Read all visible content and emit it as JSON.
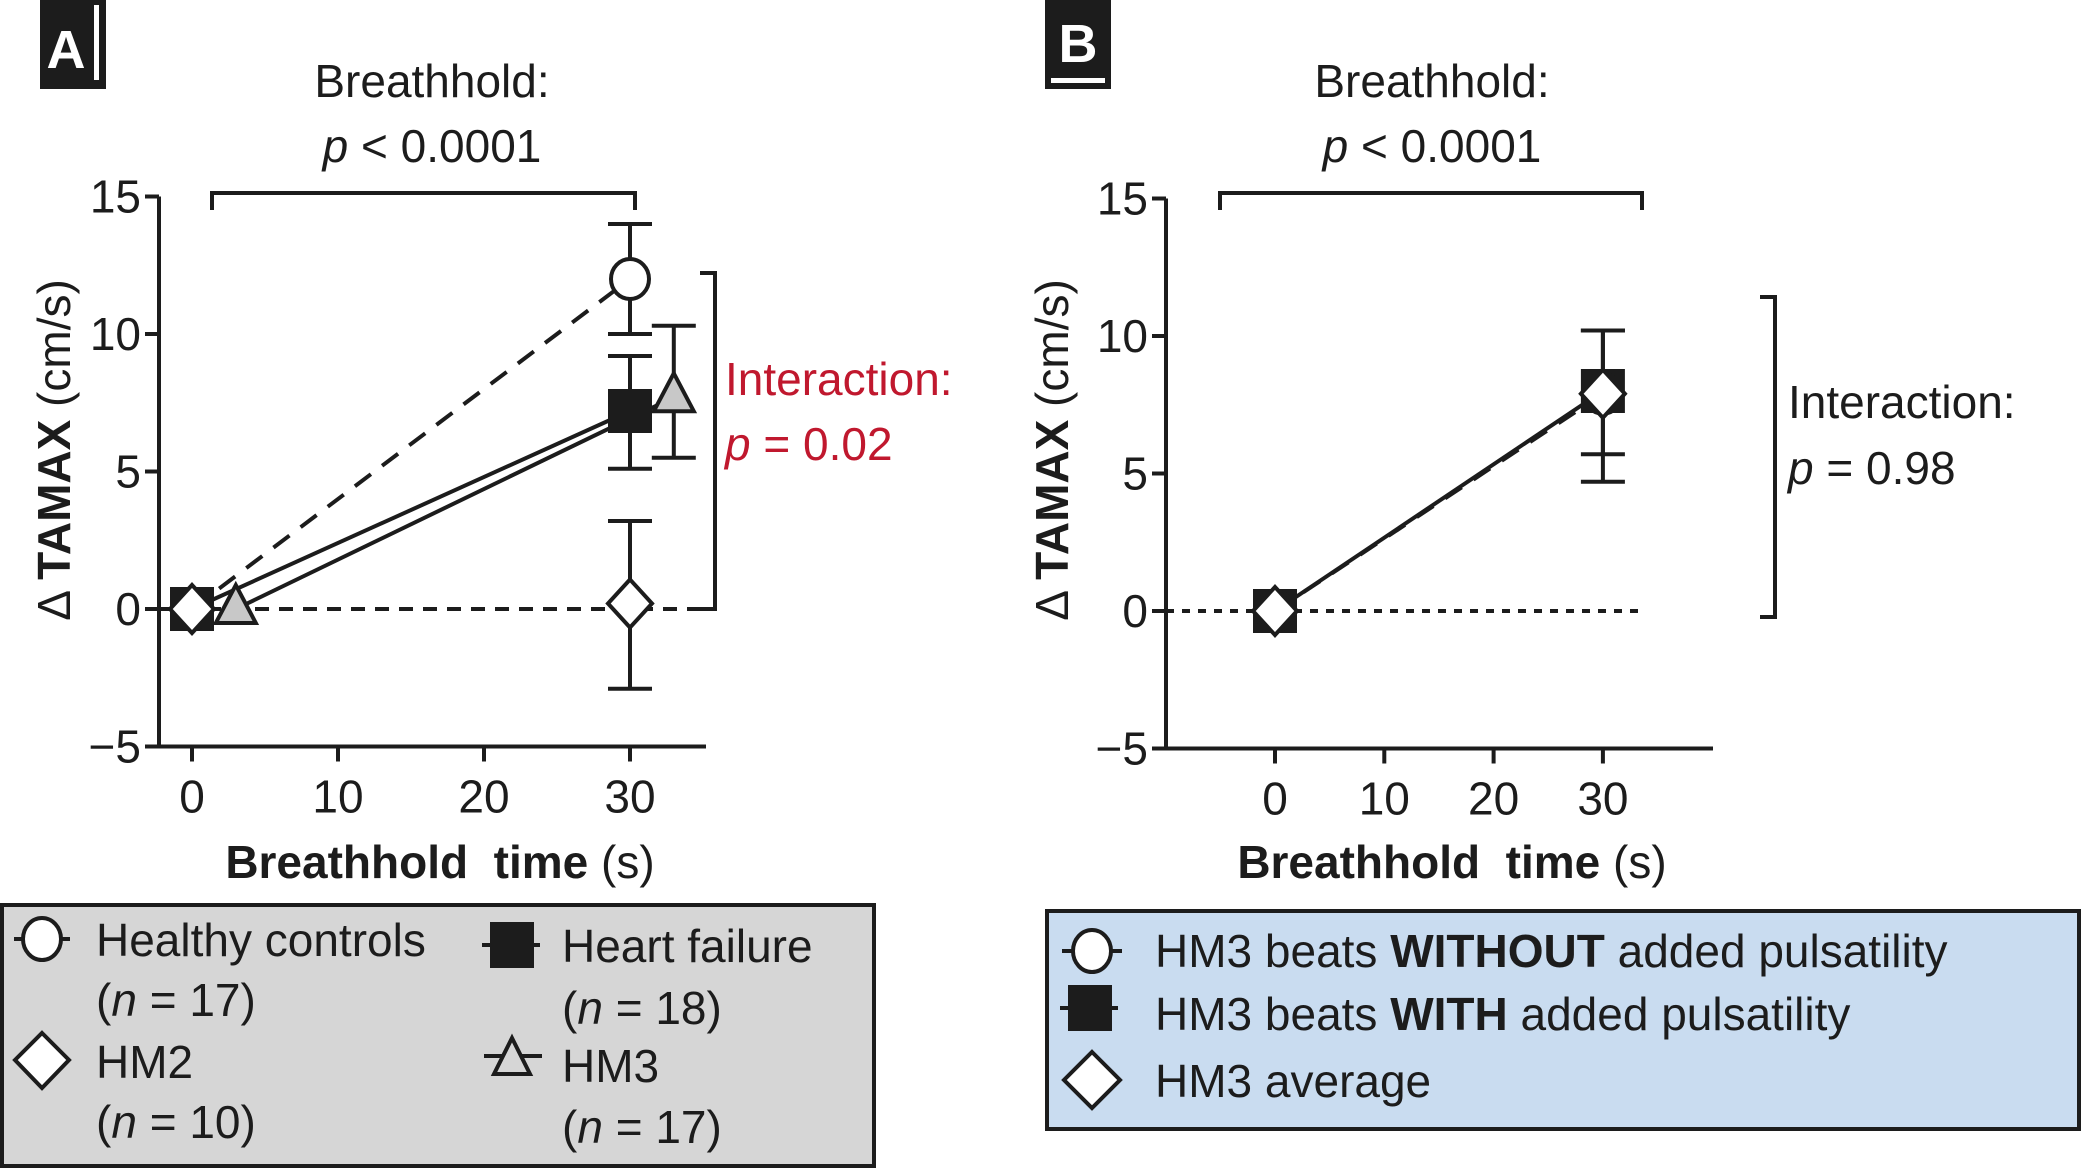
{
  "colors": {
    "ink": "#1c1c1c",
    "interaction_red": "#c0182e",
    "legend_a_bg": "#d6d6d6",
    "legend_b_bg": "#c9dcf0",
    "hm3_triangle_fill": "#c8c8c8"
  },
  "chart_data": [
    {
      "panel": "A",
      "type": "line",
      "panel_label": "A",
      "title_line1": "Breathhold:",
      "title_line2_p": "p",
      "title_line2_rest": " < 0.0001",
      "interaction_line1": "Interaction:",
      "interaction_p": "p",
      "interaction_rest": " = 0.02",
      "xlabel_bold": "Breathhold  time",
      "xlabel_rest": " (s)",
      "ylabel_delta": "Δ ",
      "ylabel_bold": "TAMAX",
      "ylabel_rest": " (cm/s)",
      "xlim": [
        -3.2,
        35.5
      ],
      "ylim": [
        -5,
        15
      ],
      "xticks": [
        0,
        10,
        20,
        30
      ],
      "xtick_labels": [
        "0",
        "10",
        "20",
        "30"
      ],
      "yticks": [
        -5,
        0,
        5,
        10,
        15
      ],
      "ytick_labels": [
        "−5",
        "0",
        "5",
        "10",
        "15"
      ],
      "reference_line_y": 0,
      "series": [
        {
          "name": "Healthy controls",
          "n_label": "(n = 17)",
          "n_prefix": "(",
          "n_var": "n",
          "n_value": " = 17)",
          "marker": "circle",
          "line": "dashed",
          "x": [
            0,
            30
          ],
          "y": [
            0,
            12.0
          ],
          "err_low": [
            null,
            10.0
          ],
          "err_high": [
            null,
            14.0
          ]
        },
        {
          "name": "Heart failure",
          "n_prefix": "(",
          "n_var": "n",
          "n_value": " = 18)",
          "marker": "square",
          "line": "solid",
          "x": [
            0,
            30
          ],
          "y": [
            0,
            7.2
          ],
          "err_low": [
            null,
            5.1
          ],
          "err_high": [
            null,
            9.2
          ]
        },
        {
          "name": "HM2",
          "n_prefix": "(",
          "n_var": "n",
          "n_value": " = 10)",
          "marker": "diamond",
          "line": "none",
          "x": [
            0,
            30
          ],
          "y": [
            0,
            0.2
          ],
          "err_low": [
            null,
            -2.9
          ],
          "err_high": [
            null,
            3.2
          ]
        },
        {
          "name": "HM3",
          "n_prefix": "(",
          "n_var": "n",
          "n_value": " = 17)",
          "marker": "triangle",
          "line": "solid",
          "x": [
            3,
            33
          ],
          "y": [
            0,
            7.7
          ],
          "err_low": [
            null,
            5.5
          ],
          "err_high": [
            null,
            10.3
          ]
        }
      ],
      "legend_position": "bottom"
    },
    {
      "panel": "B",
      "type": "line",
      "panel_label": "B",
      "title_line1": "Breathhold:",
      "title_line2_p": "p",
      "title_line2_rest": " < 0.0001",
      "interaction_line1": "Interaction:",
      "interaction_p": "p",
      "interaction_rest": " = 0.98",
      "xlabel_bold": "Breathhold  time",
      "xlabel_rest": " (s)",
      "ylabel_delta": "Δ ",
      "ylabel_bold": "TAMAX",
      "ylabel_rest": " (cm/s)",
      "xlim": [
        -10,
        40
      ],
      "ylim": [
        -5,
        15
      ],
      "xticks": [
        0,
        10,
        20,
        30
      ],
      "xtick_labels": [
        "0",
        "10",
        "20",
        "30"
      ],
      "yticks": [
        -5,
        0,
        5,
        10,
        15
      ],
      "ytick_labels": [
        "−5",
        "0",
        "5",
        "10",
        "15"
      ],
      "reference_line_y": 0,
      "series": [
        {
          "name_pre": "HM3 beats ",
          "name_bold": "WITHOUT",
          "name_post": " added pulsatility",
          "marker": "circle",
          "line": "dashed",
          "x": [
            0,
            30
          ],
          "y": [
            0,
            7.9
          ],
          "err_low": [
            null,
            5.7
          ],
          "err_high": [
            null,
            10.2
          ]
        },
        {
          "name_pre": "HM3 beats ",
          "name_bold": "WITH",
          "name_post": " added pulsatility",
          "marker": "square",
          "line": "solid",
          "x": [
            0,
            30
          ],
          "y": [
            0,
            8.0
          ],
          "err_low": [
            null,
            4.7
          ],
          "err_high": [
            null,
            10.2
          ]
        },
        {
          "name_pre": "HM3 average",
          "name_bold": "",
          "name_post": "",
          "marker": "diamond",
          "line": "none",
          "x": [
            0,
            30
          ],
          "y": [
            0,
            7.9
          ],
          "err_low": [
            null,
            null
          ],
          "err_high": [
            null,
            null
          ]
        }
      ],
      "legend_position": "bottom"
    }
  ]
}
